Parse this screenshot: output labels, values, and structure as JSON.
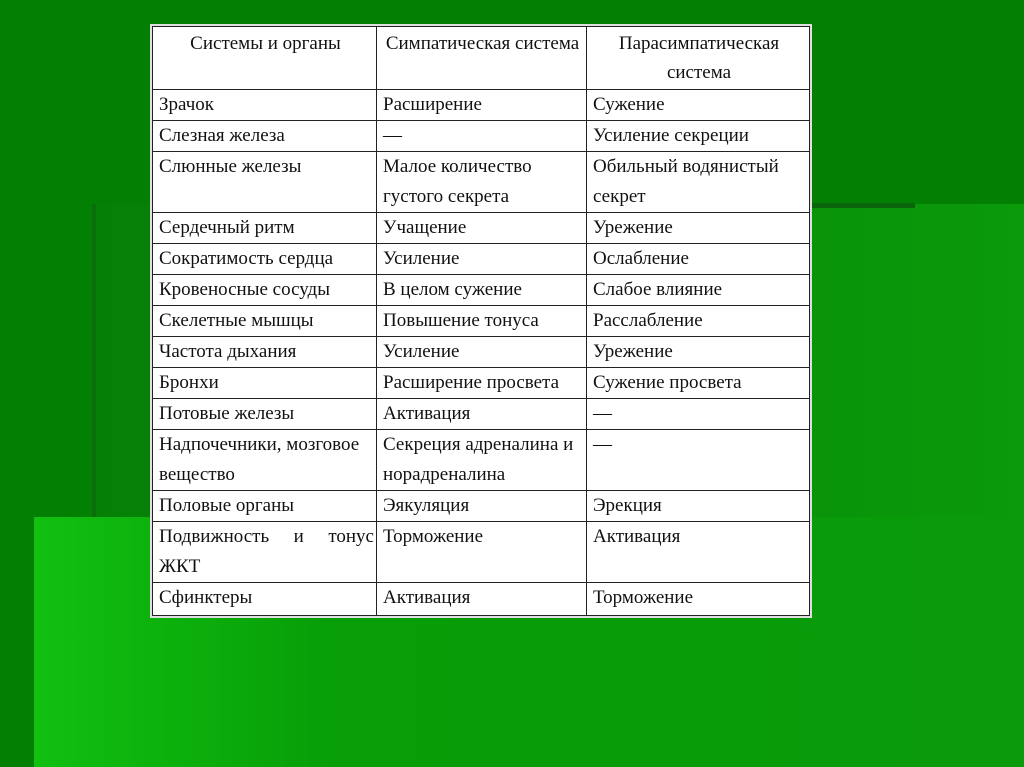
{
  "background": {
    "colors": [
      "#037f03",
      "#0a9a0a",
      "#11c011"
    ]
  },
  "table": {
    "headers": [
      "Системы и органы",
      "Симпатическая система",
      "Парасимпатическая система"
    ],
    "rows": [
      [
        "Зрачок",
        "Расширение",
        "Сужение"
      ],
      [
        "Слезная железа",
        "—",
        "Усиление секреции"
      ],
      [
        "Слюнные железы",
        "Малое количество густого секрета",
        "Обильный водянистый секрет"
      ],
      [
        "Сердечный ритм",
        "Учащение",
        "Урежение"
      ],
      [
        "Сократимость сердца",
        "Усиление",
        "Ослабление"
      ],
      [
        "Кровеносные сосуды",
        "В целом сужение",
        "Слабое влияние"
      ],
      [
        "Скелетные мышцы",
        "Повышение тонуса",
        "Расслабление"
      ],
      [
        "Частота дыхания",
        "Усиление",
        "Урежение"
      ],
      [
        "Бронхи",
        "Расширение просвета",
        "Сужение просвета"
      ],
      [
        "Потовые железы",
        "Активация",
        "—"
      ],
      [
        "Надпочечники, мозговое вещество",
        "Секреция адреналина и норадреналина",
        "—"
      ],
      [
        "Половые органы",
        "Эякуляция",
        "Эрекция"
      ],
      [
        "Подвижность и тонус ЖКТ",
        "Торможение",
        "Активация"
      ],
      [
        "Сфинктеры",
        "Активация",
        "Торможение"
      ]
    ]
  }
}
